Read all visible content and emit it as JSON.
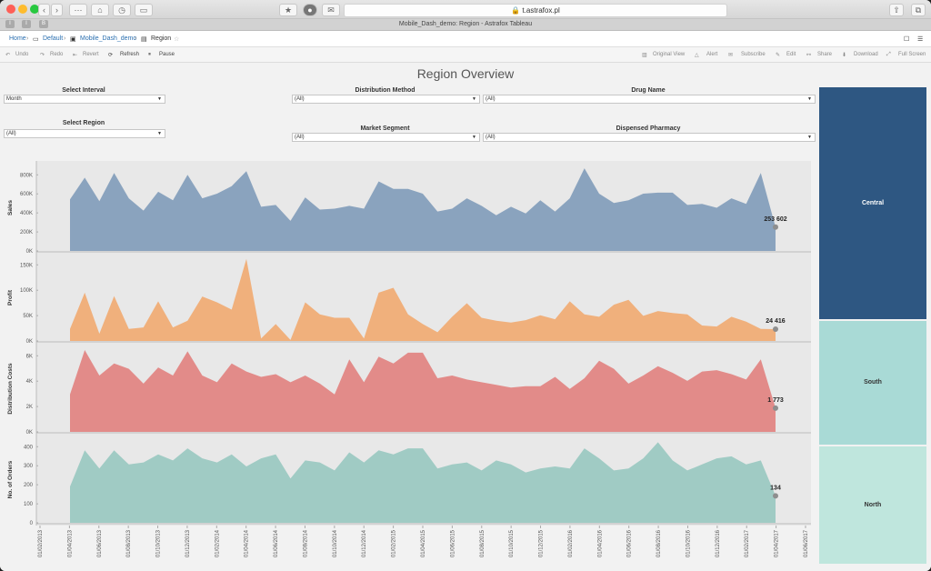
{
  "browser": {
    "url": "t.astrafox.pl",
    "tab_title": "Mobile_Dash_demo: Region - Astrafox Tableau"
  },
  "breadcrumb": {
    "home": "Home",
    "project": "Default",
    "workbook": "Mobile_Dash_demo",
    "view": "Region"
  },
  "toolbar": {
    "undo": "Undo",
    "redo": "Redo",
    "revert": "Revert",
    "refresh": "Refresh",
    "pause": "Pause",
    "original_view": "Original View",
    "alert": "Alert",
    "subscribe": "Subscribe",
    "edit": "Edit",
    "share": "Share",
    "download": "Download",
    "full_screen": "Full Screen"
  },
  "dashboard": {
    "title": "Region Overview",
    "filters": {
      "interval_label": "Select Interval",
      "interval_value": "Month",
      "region_label": "Select Region",
      "region_value": "(All)",
      "distribution_label": "Distribution Method",
      "distribution_value": "(All)",
      "segment_label": "Market Segment",
      "segment_value": "(All)",
      "drug_label": "Drug Name",
      "drug_value": "(All)",
      "pharmacy_label": "Dispensed Pharmacy",
      "pharmacy_value": "(All)"
    }
  },
  "colors": {
    "sales": "#8aa3be",
    "profit": "#f0b07c",
    "costs": "#e28b89",
    "orders": "#a0cbc4",
    "central": "#2e5782",
    "south": "#a9dad6",
    "north": "#bfe6dd"
  },
  "chart_data": {
    "type": "area",
    "x_tick_labels": [
      "01/02/2013",
      "01/04/2013",
      "01/06/2013",
      "01/08/2013",
      "01/10/2013",
      "01/12/2013",
      "01/02/2014",
      "01/04/2014",
      "01/06/2014",
      "01/08/2014",
      "01/10/2014",
      "01/12/2014",
      "01/02/2015",
      "01/04/2015",
      "01/06/2015",
      "01/08/2015",
      "01/10/2015",
      "01/12/2015",
      "01/02/2016",
      "01/04/2016",
      "01/06/2016",
      "01/08/2016",
      "01/10/2016",
      "01/12/2016",
      "01/02/2017",
      "01/04/2017",
      "01/06/2017"
    ],
    "panels": [
      {
        "name": "Sales",
        "ylabel": "Sales",
        "ticks": [
          "0K",
          "200K",
          "400K",
          "600K",
          "800K"
        ],
        "ylim": [
          0,
          900000
        ],
        "values": [
          550000,
          780000,
          530000,
          830000,
          560000,
          430000,
          630000,
          540000,
          810000,
          560000,
          610000,
          690000,
          850000,
          470000,
          490000,
          320000,
          570000,
          440000,
          450000,
          480000,
          450000,
          740000,
          660000,
          660000,
          610000,
          420000,
          450000,
          560000,
          480000,
          380000,
          470000,
          400000,
          540000,
          420000,
          560000,
          880000,
          610000,
          510000,
          540000,
          610000,
          620000,
          620000,
          490000,
          500000,
          460000,
          560000,
          500000,
          830000,
          253602
        ],
        "end_label": "253 602"
      },
      {
        "name": "Profit",
        "ylabel": "Profit",
        "ticks": [
          "0K",
          "50K",
          "100K",
          "150K"
        ],
        "ylim": [
          0,
          175000
        ],
        "values": [
          25000,
          100000,
          15000,
          93000,
          25000,
          28000,
          82000,
          28000,
          42000,
          92000,
          80000,
          65000,
          170000,
          5000,
          35000,
          2000,
          80000,
          55000,
          48000,
          48000,
          5000,
          100000,
          110000,
          55000,
          35000,
          18000,
          50000,
          78000,
          48000,
          42000,
          38000,
          43000,
          53000,
          45000,
          82000,
          55000,
          50000,
          75000,
          85000,
          52000,
          62000,
          58000,
          55000,
          32000,
          30000,
          50000,
          40000,
          25000,
          24416
        ],
        "end_label": "24 416"
      },
      {
        "name": "Distribution Costs",
        "ylabel": "Distribution Costs",
        "ticks": [
          "0K",
          "2K",
          "4K",
          "6K"
        ],
        "ylim": [
          0,
          6300
        ],
        "values": [
          2800,
          6100,
          4200,
          5100,
          4700,
          3600,
          4800,
          4200,
          6000,
          4200,
          3700,
          5100,
          4500,
          4100,
          4300,
          3700,
          4200,
          3600,
          2800,
          5400,
          3700,
          5600,
          5100,
          5900,
          5900,
          4000,
          4200,
          3900,
          3700,
          3500,
          3300,
          3400,
          3400,
          4100,
          3200,
          4000,
          5300,
          4700,
          3600,
          4200,
          4900,
          4400,
          3800,
          4500,
          4600,
          4300,
          3900,
          5400,
          1773
        ],
        "end_label": "1 773"
      },
      {
        "name": "No. of Orders",
        "ylabel": "No. of Orders",
        "ticks": [
          "0",
          "100",
          "200",
          "300",
          "400"
        ],
        "ylim": [
          0,
          420
        ],
        "values": [
          180,
          360,
          270,
          360,
          290,
          300,
          340,
          310,
          370,
          320,
          300,
          340,
          280,
          320,
          340,
          220,
          310,
          300,
          260,
          350,
          300,
          360,
          340,
          370,
          370,
          270,
          290,
          300,
          260,
          310,
          290,
          250,
          270,
          280,
          270,
          370,
          320,
          260,
          270,
          320,
          400,
          310,
          260,
          290,
          320,
          330,
          290,
          310,
          134
        ],
        "end_label": "134"
      }
    ]
  },
  "treemap": {
    "central": "Central",
    "south": "South",
    "north": "North"
  }
}
